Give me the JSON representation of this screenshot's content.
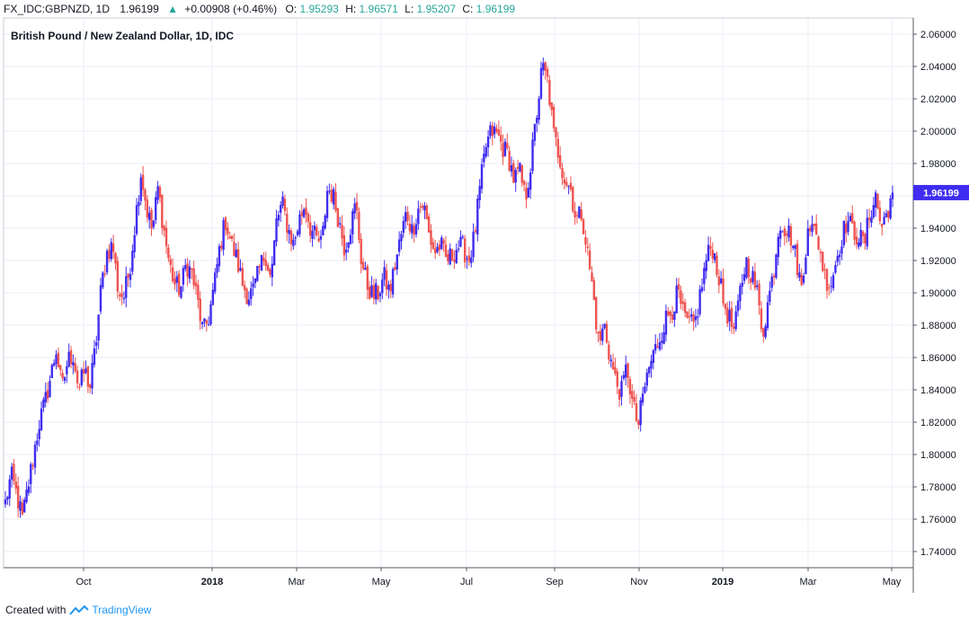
{
  "header": {
    "symbol": "FX_IDC:GBPNZD, 1D",
    "last": "1.96199",
    "arrow": "▲",
    "change": "+0.00908 (+0.46%)",
    "o_label": "O:",
    "o_value": "1.95293",
    "h_label": "H:",
    "h_value": "1.96571",
    "l_label": "L:",
    "l_value": "1.95207",
    "c_label": "C:",
    "c_value": "1.96199"
  },
  "footer": {
    "created_with": "Created with",
    "brand": "TradingView"
  },
  "colors": {
    "up": "#3f2cf0",
    "down": "#ef5350",
    "header_green": "#26a69a",
    "price_tag": "#3f2cf0",
    "grid": "#e9eef5"
  },
  "chart_data": {
    "type": "candlestick",
    "title": "British Pound / New Zealand Dollar, 1D, IDC",
    "ylim": [
      1.73,
      2.07
    ],
    "y_ticks": [
      "1.74000",
      "1.76000",
      "1.78000",
      "1.80000",
      "1.82000",
      "1.84000",
      "1.86000",
      "1.88000",
      "1.90000",
      "1.92000",
      "1.94000",
      "1.96000",
      "1.98000",
      "2.00000",
      "2.02000",
      "2.04000",
      "2.06000"
    ],
    "x_ticks": [
      {
        "label": "Oct",
        "bold": false
      },
      {
        "label": "2018",
        "bold": true
      },
      {
        "label": "Mar",
        "bold": false
      },
      {
        "label": "May",
        "bold": false
      },
      {
        "label": "Jul",
        "bold": false
      },
      {
        "label": "Sep",
        "bold": false
      },
      {
        "label": "Nov",
        "bold": false
      },
      {
        "label": "2019",
        "bold": true
      },
      {
        "label": "Mar",
        "bold": false
      },
      {
        "label": "May",
        "bold": false
      }
    ],
    "last_price_label": "1.96199",
    "last_price": 1.96199,
    "closes": [
      1.77,
      1.787,
      1.775,
      1.76,
      1.78,
      1.8,
      1.82,
      1.832,
      1.848,
      1.865,
      1.84,
      1.858,
      1.862,
      1.84,
      1.852,
      1.842,
      1.868,
      1.905,
      1.925,
      1.93,
      1.9,
      1.898,
      1.915,
      1.945,
      1.975,
      1.952,
      1.938,
      1.965,
      1.94,
      1.918,
      1.905,
      1.902,
      1.918,
      1.912,
      1.895,
      1.875,
      1.885,
      1.905,
      1.93,
      1.945,
      1.93,
      1.92,
      1.905,
      1.898,
      1.902,
      1.915,
      1.925,
      1.908,
      1.945,
      1.955,
      1.94,
      1.93,
      1.945,
      1.955,
      1.94,
      1.933,
      1.93,
      1.965,
      1.96,
      1.945,
      1.928,
      1.94,
      1.955,
      1.92,
      1.905,
      1.898,
      1.9,
      1.91,
      1.9,
      1.918,
      1.935,
      1.95,
      1.938,
      1.952,
      1.955,
      1.935,
      1.925,
      1.93,
      1.92,
      1.923,
      1.929,
      1.928,
      1.92,
      1.935,
      1.965,
      1.99,
      2.0,
      1.998,
      1.99,
      1.985,
      1.97,
      1.975,
      1.958,
      1.98,
      2.01,
      2.04,
      2.03,
      1.998,
      1.985,
      1.97,
      1.965,
      1.945,
      1.95,
      1.925,
      1.9,
      1.868,
      1.88,
      1.86,
      1.845,
      1.838,
      1.855,
      1.83,
      1.818,
      1.84,
      1.855,
      1.865,
      1.875,
      1.885,
      1.89,
      1.9,
      1.885,
      1.88,
      1.88,
      1.9,
      1.92,
      1.93,
      1.915,
      1.895,
      1.885,
      1.875,
      1.9,
      1.92,
      1.912,
      1.9,
      1.875,
      1.895,
      1.915,
      1.945,
      1.94,
      1.935,
      1.92,
      1.9,
      1.945,
      1.938,
      1.93,
      1.91,
      1.905,
      1.92,
      1.935,
      1.945,
      1.938,
      1.935,
      1.93,
      1.95,
      1.96,
      1.94,
      1.95,
      1.962
    ]
  }
}
